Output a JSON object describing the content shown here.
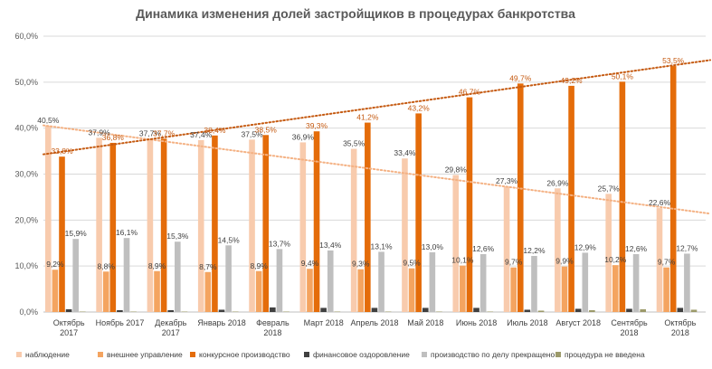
{
  "chart_data": {
    "type": "bar",
    "title": "Динамика изменения долей застройщиков в процедурах банкротства",
    "ylim": [
      0,
      60
    ],
    "yticks": [
      "0,0%",
      "10,0%",
      "20,0%",
      "30,0%",
      "40,0%",
      "50,0%",
      "60,0%"
    ],
    "categories": [
      [
        "Октябрь",
        "2017"
      ],
      [
        "Ноябрь  2017"
      ],
      [
        "Декабрь",
        "2017"
      ],
      [
        "Январь 2018"
      ],
      [
        "Февраль",
        "2018"
      ],
      [
        "Март 2018"
      ],
      [
        "Апрель 2018"
      ],
      [
        "Май 2018"
      ],
      [
        "Июнь  2018"
      ],
      [
        "Июль  2018"
      ],
      [
        "Август 2018"
      ],
      [
        "Сентябрь",
        "2018"
      ],
      [
        "Октябрь",
        "2018"
      ]
    ],
    "series": [
      {
        "name": "наблюдение",
        "color": "#F8CBAD",
        "values": [
          40.5,
          37.9,
          37.7,
          37.4,
          37.5,
          36.9,
          35.5,
          33.4,
          29.8,
          27.3,
          26.9,
          25.7,
          22.6
        ],
        "labels": [
          "40,5%",
          "37,9%",
          "37,7%",
          "37,4%",
          "37,5%",
          "36,9%",
          "35,5%",
          "33,4%",
          "29,8%",
          "27,3%",
          "26,9%",
          "25,7%",
          "22,6%"
        ]
      },
      {
        "name": "внешнее  управление",
        "color": "#F4A460",
        "values": [
          9.2,
          8.8,
          8.9,
          8.7,
          8.9,
          9.4,
          9.3,
          9.5,
          10.1,
          9.7,
          9.9,
          10.2,
          9.7
        ],
        "labels": [
          "9,2%",
          "8,8%",
          "8,9%",
          "8,7%",
          "8,9%",
          "9,4%",
          "9,3%",
          "9,5%",
          "10,1%",
          "9,7%",
          "9,9%",
          "10,2%",
          "9,7%"
        ]
      },
      {
        "name": "конкурсное  производство",
        "color": "#E46C0A",
        "values": [
          33.8,
          36.8,
          37.7,
          38.4,
          38.5,
          39.3,
          41.2,
          43.2,
          46.7,
          49.7,
          49.2,
          50.1,
          53.5
        ],
        "labels": [
          "33,8%",
          "36,8%",
          "37,7%",
          "38,4%",
          "38,5%",
          "39,3%",
          "41,2%",
          "43,2%",
          "46,7%",
          "49,7%",
          "49,2%",
          "50,1%",
          "53,5%"
        ]
      },
      {
        "name": "финансовое  оздоровление",
        "color": "#404040",
        "values": [
          0.6,
          0.4,
          0.4,
          0.5,
          1.0,
          0.9,
          0.9,
          0.9,
          0.9,
          0.5,
          0.7,
          0.7,
          0.9
        ]
      },
      {
        "name": "производство   по делу прекращено",
        "color": "#BFBFBF",
        "values": [
          15.9,
          16.1,
          15.3,
          14.5,
          13.7,
          13.4,
          13.1,
          13.0,
          12.6,
          12.2,
          12.9,
          12.6,
          12.7
        ],
        "labels": [
          "15,9%",
          "16,1%",
          "15,3%",
          "14,5%",
          "13,7%",
          "13,4%",
          "13,1%",
          "13,0%",
          "12,6%",
          "12,2%",
          "12,9%",
          "12,6%",
          "12,7%"
        ]
      },
      {
        "name": "процедура  не введена",
        "color": "#9C9A6A",
        "values": [
          0.1,
          0.1,
          0.1,
          0.1,
          0.1,
          0.1,
          0.1,
          0.1,
          0.1,
          0.3,
          0.4,
          0.6,
          0.5
        ]
      }
    ],
    "trendlines": [
      {
        "series": "наблюдение",
        "color": "#F4B183",
        "from": 40.6,
        "to": 21.4
      },
      {
        "series": "конкурсное  производство",
        "color": "#C55A11",
        "from": 34.3,
        "to": 54.8
      }
    ],
    "legend_position": "bottom",
    "grid": true
  }
}
